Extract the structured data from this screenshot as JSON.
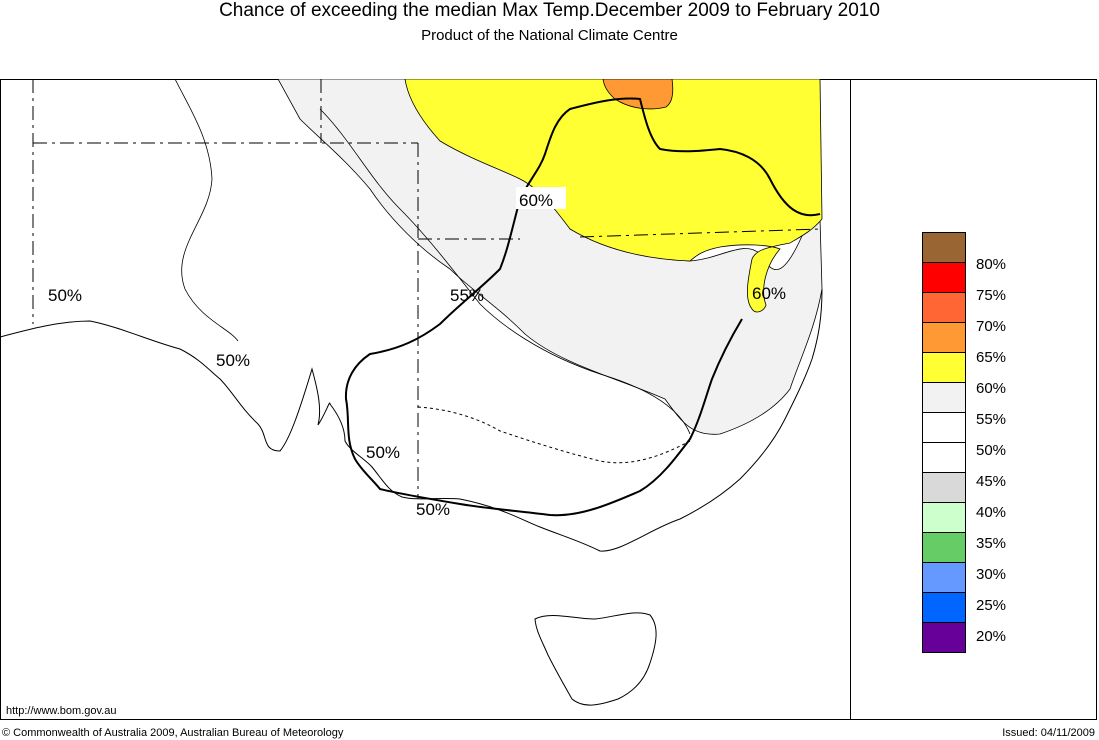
{
  "header": {
    "title": "Chance of exceeding the median Max Temp.December 2009 to February 2010",
    "subtitle": "Product of the National Climate Centre"
  },
  "map": {
    "region": "South-east Australia",
    "labels": [
      "50%",
      "50%",
      "55%",
      "60%",
      "60%",
      "50%",
      "50%"
    ],
    "colors": {
      "yellow_60": "#ffff33",
      "orange_65": "#ff9933",
      "lightgrey_55": "#f2f2f2",
      "white_50": "#ffffff"
    }
  },
  "legend": {
    "items": [
      {
        "label": "80%",
        "color": "#996633"
      },
      {
        "label": "75%",
        "color": "#ff0000"
      },
      {
        "label": "70%",
        "color": "#ff6633"
      },
      {
        "label": "65%",
        "color": "#ff9933"
      },
      {
        "label": "60%",
        "color": "#ffff33"
      },
      {
        "label": "55%",
        "color": "#f2f2f2"
      },
      {
        "label": "50%",
        "color": "#ffffff"
      },
      {
        "label": "45%",
        "color": "#ffffff"
      },
      {
        "label": "40%",
        "color": "#d9d9d9"
      },
      {
        "label": "35%",
        "color": "#ccffcc"
      },
      {
        "label": "30%",
        "color": "#66cc66"
      },
      {
        "label": "25%",
        "color": "#6699ff"
      },
      {
        "label": "20%",
        "color": "#0066ff"
      },
      {
        "label": "",
        "color": "#660099"
      }
    ]
  },
  "footer": {
    "url": "http://www.bom.gov.au",
    "copyright": "© Commonwealth of Australia 2009, Australian Bureau of Meteorology",
    "issued": "Issued: 04/11/2009"
  }
}
